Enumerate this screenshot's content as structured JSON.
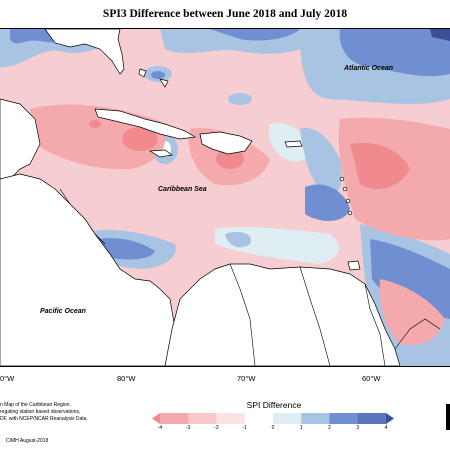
{
  "title": "SPI3 Difference between June 2018 and July 2018",
  "map": {
    "labels": {
      "atlantic": "Atlantic Ocean",
      "caribbean": "Caribbean Sea",
      "pacific": "Pacific Ocean"
    },
    "longitude_ticks": [
      "0°W",
      "80°W",
      "70°W",
      "60°W"
    ]
  },
  "notes": {
    "line1": "n Map of the Caribbean Region.",
    "line2": "regating station based observations,",
    "line3": "DF, with NCEP/NCAR Reanalysis Data.",
    "credit": "CIMH August-2018"
  },
  "legend": {
    "title": "SPI Difference",
    "ticks": [
      "-4",
      "-3",
      "-2",
      "-1",
      "0",
      "1",
      "2",
      "3",
      "4"
    ],
    "colors": [
      "#f08a8e",
      "#f4a9ad",
      "#f8c8ca",
      "#fbe3e4",
      "#ffffff",
      "#dfeef3",
      "#a6c4e4",
      "#6f8fd2",
      "#5a77bd",
      "#3c4f99"
    ]
  }
}
